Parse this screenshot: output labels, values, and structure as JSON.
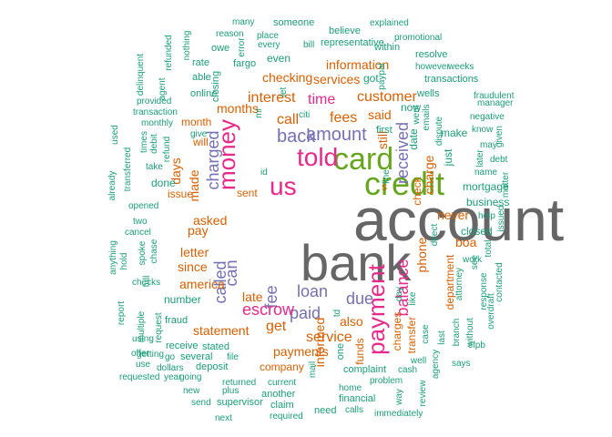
{
  "palette": {
    "gray": "#666666",
    "green": "#66a61e",
    "magenta": "#e7298a",
    "purple": "#7570b3",
    "orange": "#d95f02",
    "teal": "#1b9e77"
  },
  "words": [
    {
      "text": "account",
      "color": "gray"
    },
    {
      "text": "bank",
      "color": "gray"
    },
    {
      "text": "credit",
      "color": "green"
    },
    {
      "text": "card",
      "color": "green"
    },
    {
      "text": "told",
      "color": "magenta"
    },
    {
      "text": "us",
      "color": "magenta"
    },
    {
      "text": "money",
      "color": "magenta"
    },
    {
      "text": "payment",
      "color": "magenta"
    },
    {
      "text": "amount",
      "color": "purple"
    },
    {
      "text": "back",
      "color": "purple"
    },
    {
      "text": "charged",
      "color": "purple"
    },
    {
      "text": "called",
      "color": "purple"
    },
    {
      "text": "can",
      "color": "purple"
    },
    {
      "text": "fee",
      "color": "purple"
    },
    {
      "text": "loan",
      "color": "purple"
    },
    {
      "text": "paid",
      "color": "purple"
    },
    {
      "text": "due",
      "color": "purple"
    },
    {
      "text": "received",
      "color": "purple"
    },
    {
      "text": "balance",
      "color": "magenta"
    },
    {
      "text": "escrow",
      "color": "magenta"
    },
    {
      "text": "time",
      "color": "magenta"
    },
    {
      "text": "fees",
      "color": "orange"
    },
    {
      "text": "call",
      "color": "orange"
    },
    {
      "text": "interest",
      "color": "orange"
    },
    {
      "text": "customer",
      "color": "orange"
    },
    {
      "text": "said",
      "color": "orange"
    },
    {
      "text": "service",
      "color": "orange"
    },
    {
      "text": "services",
      "color": "orange"
    },
    {
      "text": "information",
      "color": "orange"
    },
    {
      "text": "checking",
      "color": "orange"
    },
    {
      "text": "months",
      "color": "orange"
    },
    {
      "text": "month",
      "color": "orange"
    },
    {
      "text": "days",
      "color": "orange"
    },
    {
      "text": "made",
      "color": "orange"
    },
    {
      "text": "asked",
      "color": "orange"
    },
    {
      "text": "pay",
      "color": "orange"
    },
    {
      "text": "letter",
      "color": "orange"
    },
    {
      "text": "since",
      "color": "orange"
    },
    {
      "text": "america",
      "color": "orange"
    },
    {
      "text": "late",
      "color": "orange"
    },
    {
      "text": "get",
      "color": "orange"
    },
    {
      "text": "statement",
      "color": "orange"
    },
    {
      "text": "payments",
      "color": "orange"
    },
    {
      "text": "also",
      "color": "orange"
    },
    {
      "text": "informed",
      "color": "orange"
    },
    {
      "text": "charges",
      "color": "orange"
    },
    {
      "text": "transfer",
      "color": "orange"
    },
    {
      "text": "phone",
      "color": "orange"
    },
    {
      "text": "charge",
      "color": "orange"
    },
    {
      "text": "check",
      "color": "orange"
    },
    {
      "text": "still",
      "color": "orange"
    },
    {
      "text": "never",
      "color": "orange"
    },
    {
      "text": "boa",
      "color": "orange"
    },
    {
      "text": "s",
      "color": "orange"
    },
    {
      "text": "sent",
      "color": "orange"
    },
    {
      "text": "issue",
      "color": "orange"
    },
    {
      "text": "done",
      "color": "teal"
    },
    {
      "text": "will",
      "color": "orange"
    },
    {
      "text": "company",
      "color": "orange"
    },
    {
      "text": "funds",
      "color": "orange"
    },
    {
      "text": "department",
      "color": "orange"
    },
    {
      "text": "number",
      "color": "teal"
    },
    {
      "text": "just",
      "color": "teal"
    },
    {
      "text": "make",
      "color": "teal"
    },
    {
      "text": "mortgage",
      "color": "teal"
    },
    {
      "text": "business",
      "color": "teal"
    },
    {
      "text": "closed",
      "color": "teal"
    },
    {
      "text": "date",
      "color": "teal"
    },
    {
      "text": "now",
      "color": "teal"
    },
    {
      "text": "got",
      "color": "teal"
    },
    {
      "text": "even",
      "color": "teal"
    },
    {
      "text": "first",
      "color": "teal"
    },
    {
      "text": "many",
      "color": "teal"
    },
    {
      "text": "someone",
      "color": "teal"
    },
    {
      "text": "explained",
      "color": "teal"
    },
    {
      "text": "reason",
      "color": "teal"
    },
    {
      "text": "error",
      "color": "teal"
    },
    {
      "text": "place",
      "color": "teal"
    },
    {
      "text": "believe",
      "color": "teal"
    },
    {
      "text": "promotional",
      "color": "teal"
    },
    {
      "text": "refunded",
      "color": "teal"
    },
    {
      "text": "nothing",
      "color": "teal"
    },
    {
      "text": "owe",
      "color": "teal"
    },
    {
      "text": "every",
      "color": "teal"
    },
    {
      "text": "bill",
      "color": "teal"
    },
    {
      "text": "representative",
      "color": "teal"
    },
    {
      "text": "within",
      "color": "teal"
    },
    {
      "text": "rate",
      "color": "teal"
    },
    {
      "text": "fargo",
      "color": "teal"
    },
    {
      "text": "resolve",
      "color": "teal"
    },
    {
      "text": "delinquent",
      "color": "teal"
    },
    {
      "text": "paypal",
      "color": "teal"
    },
    {
      "text": "however",
      "color": "teal"
    },
    {
      "text": "weeks",
      "color": "teal"
    },
    {
      "text": "able",
      "color": "teal"
    },
    {
      "text": "closing",
      "color": "teal"
    },
    {
      "text": "transactions",
      "color": "teal"
    },
    {
      "text": "agent",
      "color": "teal"
    },
    {
      "text": "online",
      "color": "teal"
    },
    {
      "text": "let",
      "color": "teal"
    },
    {
      "text": "wells",
      "color": "teal"
    },
    {
      "text": "fraudulent",
      "color": "teal"
    },
    {
      "text": "provided",
      "color": "teal"
    },
    {
      "text": "manager",
      "color": "teal"
    },
    {
      "text": "transaction",
      "color": "teal"
    },
    {
      "text": "mr",
      "color": "teal"
    },
    {
      "text": "citi",
      "color": "teal"
    },
    {
      "text": "emails",
      "color": "teal"
    },
    {
      "text": "went",
      "color": "teal"
    },
    {
      "text": "negative",
      "color": "teal"
    },
    {
      "text": "monthly",
      "color": "teal"
    },
    {
      "text": "give",
      "color": "teal"
    },
    {
      "text": "know",
      "color": "teal"
    },
    {
      "text": "used",
      "color": "teal"
    },
    {
      "text": "times",
      "color": "teal"
    },
    {
      "text": "debit",
      "color": "teal"
    },
    {
      "text": "dispute",
      "color": "teal"
    },
    {
      "text": "may",
      "color": "teal"
    },
    {
      "text": "given",
      "color": "teal"
    },
    {
      "text": "refund",
      "color": "teal"
    },
    {
      "text": "later",
      "color": "teal"
    },
    {
      "text": "debt",
      "color": "teal"
    },
    {
      "text": "take",
      "color": "teal"
    },
    {
      "text": "name",
      "color": "teal"
    },
    {
      "text": "already",
      "color": "teal"
    },
    {
      "text": "transferred",
      "color": "teal"
    },
    {
      "text": "id",
      "color": "teal"
    },
    {
      "text": "matter",
      "color": "teal"
    },
    {
      "text": "line",
      "color": "teal"
    },
    {
      "text": "opened",
      "color": "teal"
    },
    {
      "text": "help",
      "color": "teal"
    },
    {
      "text": "issued",
      "color": "teal"
    },
    {
      "text": "two",
      "color": "teal"
    },
    {
      "text": "direct",
      "color": "teal"
    },
    {
      "text": "cancel",
      "color": "teal"
    },
    {
      "text": "anything",
      "color": "teal"
    },
    {
      "text": "spoke",
      "color": "teal"
    },
    {
      "text": "chase",
      "color": "teal"
    },
    {
      "text": "total",
      "color": "teal"
    },
    {
      "text": "see",
      "color": "teal"
    },
    {
      "text": "work",
      "color": "teal"
    },
    {
      "text": "contacted",
      "color": "teal"
    },
    {
      "text": "hold",
      "color": "teal"
    },
    {
      "text": "full",
      "color": "teal"
    },
    {
      "text": "attorney",
      "color": "teal"
    },
    {
      "text": "checks",
      "color": "teal"
    },
    {
      "text": "day",
      "color": "teal"
    },
    {
      "text": "like",
      "color": "teal"
    },
    {
      "text": "response",
      "color": "teal"
    },
    {
      "text": "report",
      "color": "teal"
    },
    {
      "text": "request",
      "color": "teal"
    },
    {
      "text": "case",
      "color": "teal"
    },
    {
      "text": "last",
      "color": "teal"
    },
    {
      "text": "branch",
      "color": "teal"
    },
    {
      "text": "without",
      "color": "teal"
    },
    {
      "text": "overdraft",
      "color": "teal"
    },
    {
      "text": "multiple",
      "color": "teal"
    },
    {
      "text": "fraud",
      "color": "teal"
    },
    {
      "text": "one",
      "color": "teal"
    },
    {
      "text": "cfpb",
      "color": "teal"
    },
    {
      "text": "using",
      "color": "teal"
    },
    {
      "text": "receive",
      "color": "teal"
    },
    {
      "text": "stated",
      "color": "teal"
    },
    {
      "text": "offer",
      "color": "teal"
    },
    {
      "text": "getting",
      "color": "teal"
    },
    {
      "text": "go",
      "color": "teal"
    },
    {
      "text": "several",
      "color": "teal"
    },
    {
      "text": "file",
      "color": "teal"
    },
    {
      "text": "well",
      "color": "teal"
    },
    {
      "text": "agency",
      "color": "teal"
    },
    {
      "text": "use",
      "color": "teal"
    },
    {
      "text": "dollars",
      "color": "teal"
    },
    {
      "text": "deposit",
      "color": "teal"
    },
    {
      "text": "complaint",
      "color": "teal"
    },
    {
      "text": "cash",
      "color": "teal"
    },
    {
      "text": "says",
      "color": "teal"
    },
    {
      "text": "requested",
      "color": "teal"
    },
    {
      "text": "year",
      "color": "teal"
    },
    {
      "text": "going",
      "color": "teal"
    },
    {
      "text": "returned",
      "color": "teal"
    },
    {
      "text": "mail",
      "color": "teal"
    },
    {
      "text": "problem",
      "color": "teal"
    },
    {
      "text": "new",
      "color": "teal"
    },
    {
      "text": "plus",
      "color": "teal"
    },
    {
      "text": "current",
      "color": "teal"
    },
    {
      "text": "home",
      "color": "teal"
    },
    {
      "text": "way",
      "color": "teal"
    },
    {
      "text": "review",
      "color": "teal"
    },
    {
      "text": "send",
      "color": "teal"
    },
    {
      "text": "supervisor",
      "color": "teal"
    },
    {
      "text": "another",
      "color": "teal"
    },
    {
      "text": "financial",
      "color": "teal"
    },
    {
      "text": "claim",
      "color": "teal"
    },
    {
      "text": "need",
      "color": "teal"
    },
    {
      "text": "calls",
      "color": "teal"
    },
    {
      "text": "next",
      "color": "teal"
    },
    {
      "text": "required",
      "color": "teal"
    },
    {
      "text": "immediately",
      "color": "teal"
    },
    {
      "text": "td",
      "color": "teal"
    }
  ]
}
